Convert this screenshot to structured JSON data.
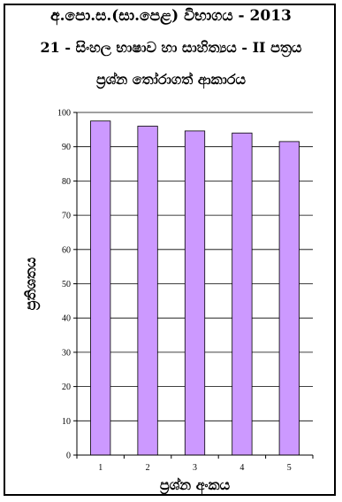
{
  "header": {
    "line1": "අ.පො.ස.(සා.පෙළ) විභාගය - 2013",
    "line2": "21 - සිංහල භාෂාව හා සාහිත්‍යය - II පත්‍රය",
    "line3": "ප්‍රශ්න තෝරාගත් ආකාරය"
  },
  "colors": {
    "bar_fill": "#CC99FF",
    "bar_stroke": "#000000",
    "grid": "#000000",
    "axis": "#000000"
  },
  "chart_data": {
    "type": "bar",
    "title": "ප්‍රශ්න තෝරාගත් ආකාරය",
    "xlabel": "ප්‍රශ්න අංකය",
    "ylabel": "ප්‍රතිශතය",
    "categories": [
      "1",
      "2",
      "3",
      "4",
      "5"
    ],
    "values": [
      97.5,
      96,
      94.6,
      94,
      91.5
    ],
    "ylim": [
      0,
      100
    ],
    "yticks": [
      0,
      10,
      20,
      30,
      40,
      50,
      60,
      70,
      80,
      90,
      100
    ],
    "grid": true,
    "legend": "none"
  }
}
